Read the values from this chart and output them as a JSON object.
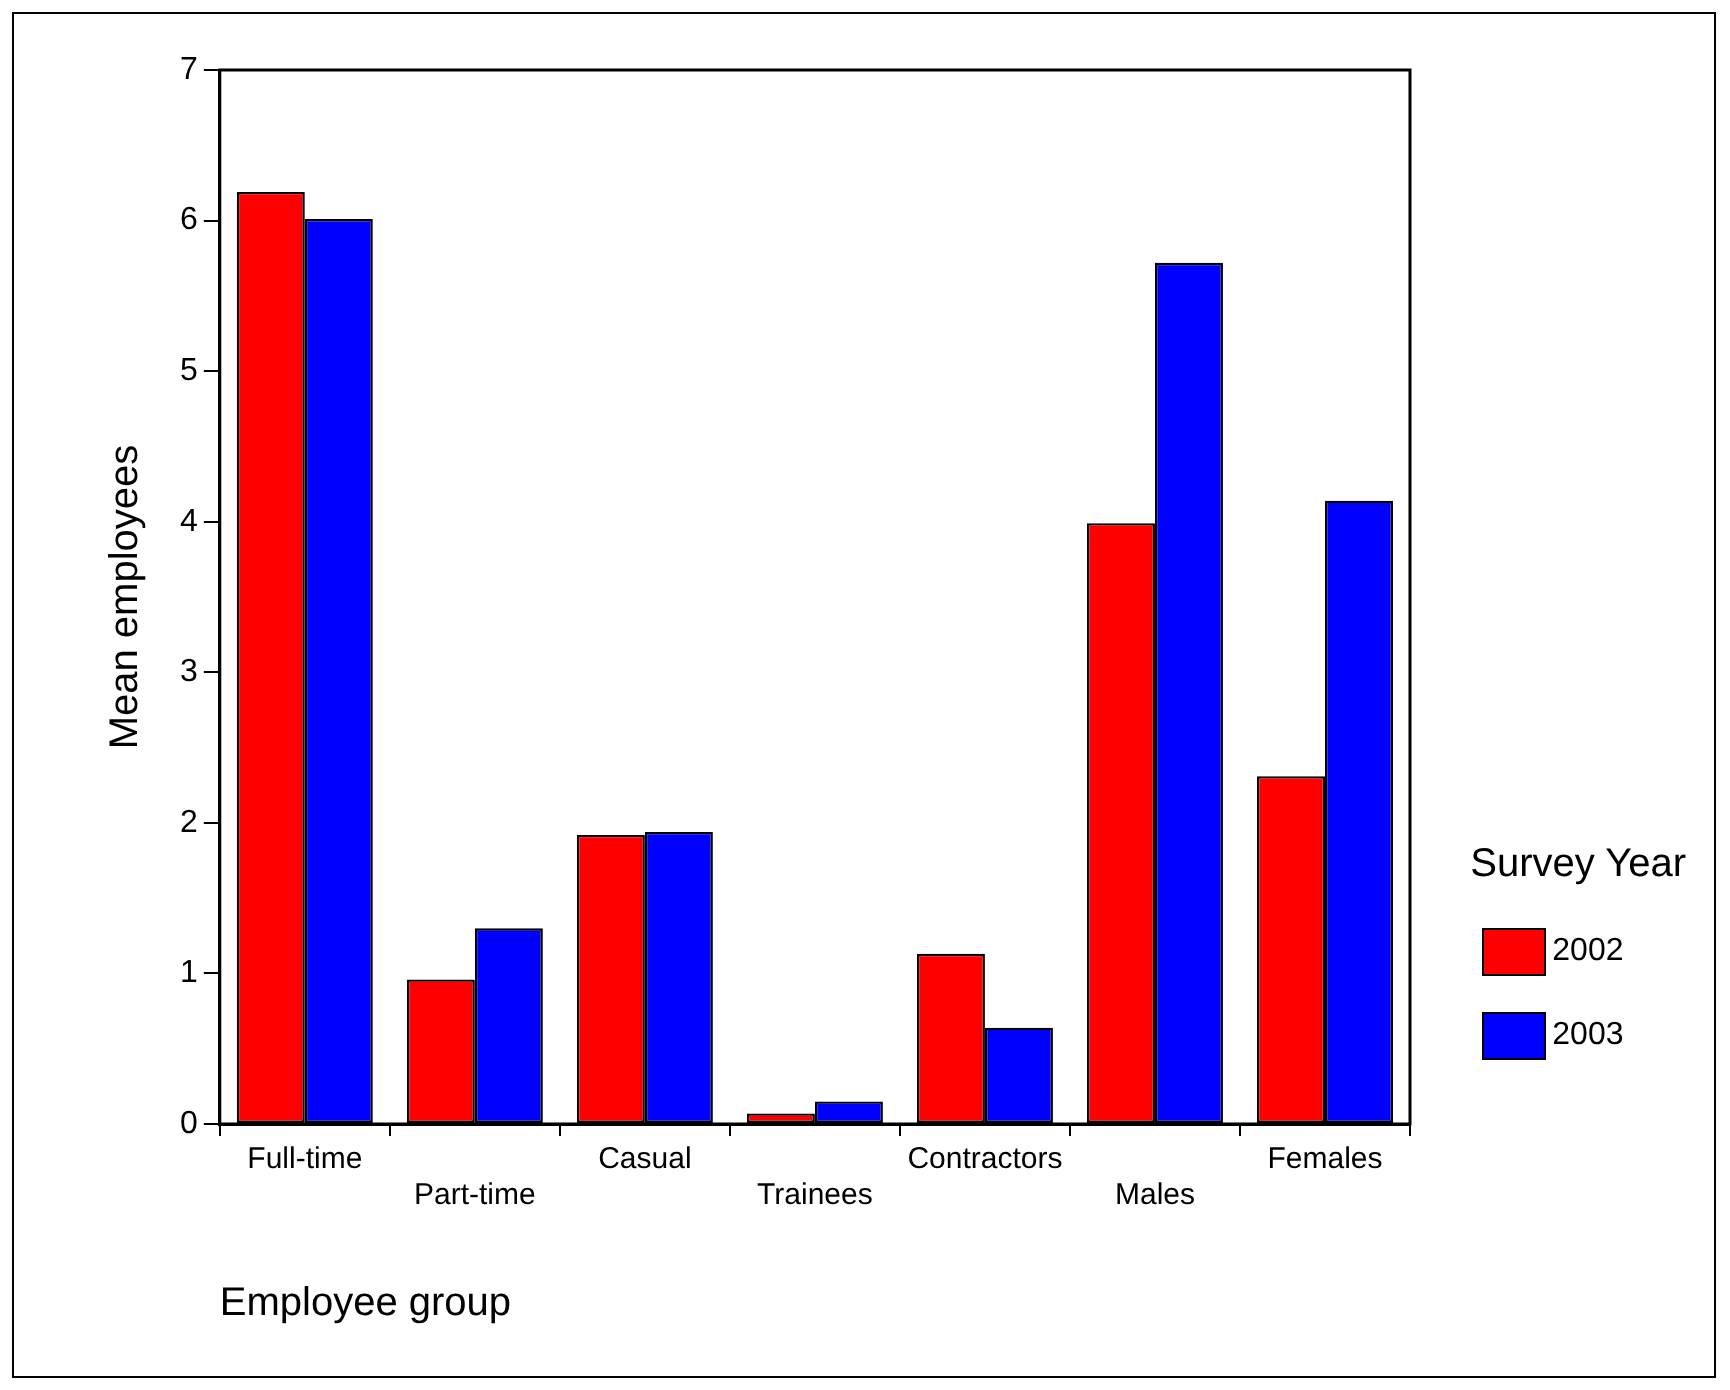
{
  "chart_data": {
    "type": "bar",
    "xlabel": "Employee group",
    "ylabel": "Mean employees",
    "legend_title": "Survey Year",
    "legend": "bottom right",
    "categories": [
      "Full-time",
      "Part-time",
      "Casual",
      "Trainees",
      "Contractors",
      "Males",
      "Females"
    ],
    "series": [
      {
        "name": "2002",
        "color": "#ff0000",
        "values": [
          6.19,
          0.96,
          1.92,
          0.07,
          1.13,
          3.99,
          2.31
        ]
      },
      {
        "name": "2003",
        "color": "#0000ff",
        "values": [
          6.01,
          1.3,
          1.94,
          0.15,
          0.64,
          5.72,
          4.14
        ]
      }
    ],
    "ylim": [
      0,
      7
    ],
    "yticks": [
      0,
      1,
      2,
      3,
      4,
      5,
      6,
      7
    ],
    "grid": false
  }
}
